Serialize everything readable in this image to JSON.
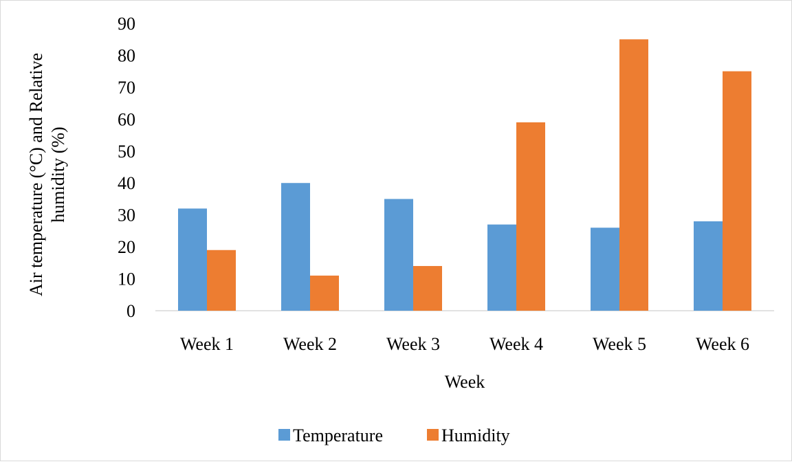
{
  "chart_data": {
    "type": "bar",
    "title": "",
    "xlabel": "Week",
    "ylabel_lines": [
      "Air temperature (°C) and Relative",
      "humidity (%)"
    ],
    "categories": [
      "Week 1",
      "Week 2",
      "Week 3",
      "Week 4",
      "Week 5",
      "Week 6"
    ],
    "series": [
      {
        "name": "Temperature",
        "color": "#5B9BD5",
        "values": [
          32,
          40,
          35,
          27,
          26,
          28
        ]
      },
      {
        "name": "Humidity",
        "color": "#ED7D31",
        "values": [
          19,
          11,
          14,
          59,
          85,
          75
        ]
      }
    ],
    "ylim": [
      0,
      90
    ],
    "yticks": [
      0,
      10,
      20,
      30,
      40,
      50,
      60,
      70,
      80,
      90
    ],
    "grid": false,
    "legend_position": "bottom"
  }
}
